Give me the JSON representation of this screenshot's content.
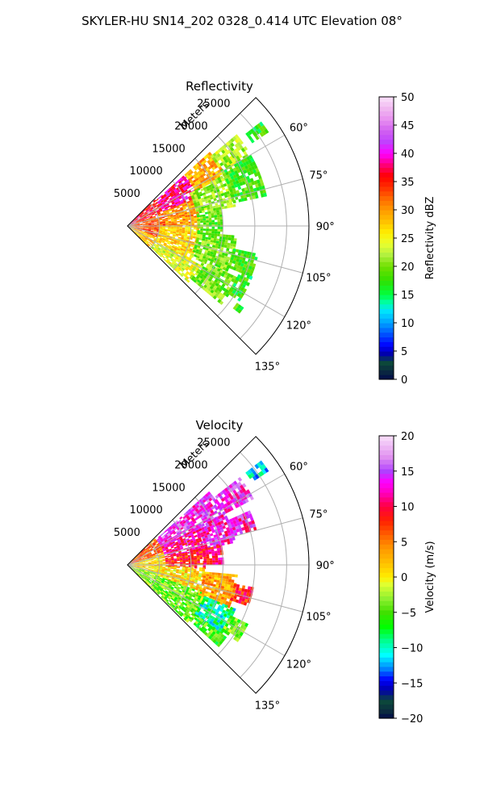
{
  "suptitle": "SKYLER-HU  SN14_202  0328_0.414 UTC Elevation 08°",
  "chart_data": [
    {
      "type": "heatmap",
      "subtype": "polar-sector-radar",
      "title": "Reflectivity",
      "radial_label": "Meters",
      "r_ticks": [
        5000,
        10000,
        15000,
        20000,
        25000
      ],
      "r_max_m": 28500,
      "theta_range_deg": [
        45,
        135
      ],
      "theta_ticks_deg": [
        60,
        75,
        90,
        105,
        120,
        135
      ],
      "theta_tick_labels": [
        "60°",
        "75°",
        "90°",
        "105°",
        "120°",
        "135°"
      ],
      "grid": true,
      "colorbar": {
        "label": "Reflectivity dBZ",
        "min": 0,
        "max": 50,
        "ticks": [
          0,
          5,
          10,
          15,
          20,
          25,
          30,
          35,
          40,
          45,
          50
        ],
        "tick_labels": [
          "0",
          "5",
          "10",
          "15",
          "20",
          "25",
          "30",
          "35",
          "40",
          "45",
          "50"
        ],
        "stops": [
          {
            "v": 0,
            "c": "#000a4a"
          },
          {
            "v": 1.5,
            "c": "#0b2a3f"
          },
          {
            "v": 3,
            "c": "#0c4a3a"
          },
          {
            "v": 4.5,
            "c": "#0000a8"
          },
          {
            "v": 6,
            "c": "#0000ff"
          },
          {
            "v": 8,
            "c": "#0050ff"
          },
          {
            "v": 10,
            "c": "#00a0ff"
          },
          {
            "v": 12,
            "c": "#00e0ff"
          },
          {
            "v": 13.5,
            "c": "#00ffb0"
          },
          {
            "v": 15,
            "c": "#00ff40"
          },
          {
            "v": 17.5,
            "c": "#30e000"
          },
          {
            "v": 20,
            "c": "#70e000"
          },
          {
            "v": 22,
            "c": "#b0f040"
          },
          {
            "v": 24,
            "c": "#e8ff30"
          },
          {
            "v": 26,
            "c": "#ffee00"
          },
          {
            "v": 28,
            "c": "#ffc000"
          },
          {
            "v": 30,
            "c": "#ff9a00"
          },
          {
            "v": 32,
            "c": "#ff6a00"
          },
          {
            "v": 34,
            "c": "#ff3000"
          },
          {
            "v": 36,
            "c": "#ff0000"
          },
          {
            "v": 38,
            "c": "#ff0078"
          },
          {
            "v": 40,
            "c": "#ff00ff"
          },
          {
            "v": 42,
            "c": "#c040ff"
          },
          {
            "v": 44,
            "c": "#d060f0"
          },
          {
            "v": 46,
            "c": "#e890f0"
          },
          {
            "v": 48,
            "c": "#f0b8f0"
          },
          {
            "v": 50,
            "c": "#fae0fa"
          }
        ]
      },
      "field_regions": [
        {
          "theta": [
            46,
            70
          ],
          "r": [
            0,
            6000
          ],
          "value": 36
        },
        {
          "theta": [
            70,
            110
          ],
          "r": [
            0,
            6000
          ],
          "value": 33
        },
        {
          "theta": [
            110,
            134
          ],
          "r": [
            0,
            5000
          ],
          "value": 28
        },
        {
          "theta": [
            48,
            68
          ],
          "r": [
            6000,
            12000
          ],
          "value": 38
        },
        {
          "theta": [
            68,
            90
          ],
          "r": [
            6000,
            11000
          ],
          "value": 30
        },
        {
          "theta": [
            90,
            118
          ],
          "r": [
            5000,
            11000
          ],
          "value": 27
        },
        {
          "theta": [
            118,
            133
          ],
          "r": [
            5000,
            13000
          ],
          "value": 24
        },
        {
          "theta": [
            48,
            62
          ],
          "r": [
            12000,
            17000
          ],
          "value": 29
        },
        {
          "theta": [
            62,
            80
          ],
          "r": [
            11000,
            17000
          ],
          "value": 21
        },
        {
          "theta": [
            80,
            95
          ],
          "r": [
            11000,
            15000
          ],
          "value": 19
        },
        {
          "theta": [
            95,
            115
          ],
          "r": [
            11000,
            17000
          ],
          "value": 20
        },
        {
          "theta": [
            115,
            130
          ],
          "r": [
            13000,
            19000
          ],
          "value": 20
        },
        {
          "theta": [
            50,
            60
          ],
          "r": [
            17000,
            22000
          ],
          "value": 22
        },
        {
          "theta": [
            60,
            78
          ],
          "r": [
            17000,
            22000
          ],
          "value": 18
        },
        {
          "theta": [
            102,
            112
          ],
          "r": [
            17000,
            21000
          ],
          "value": 18
        },
        {
          "theta": [
            112,
            124
          ],
          "r": [
            19000,
            21000
          ],
          "value": 17
        },
        {
          "theta": [
            52,
            56
          ],
          "r": [
            23500,
            26500
          ],
          "value": 17
        },
        {
          "theta": [
            125,
            128
          ],
          "r": [
            21000,
            22000
          ],
          "value": 18
        }
      ]
    },
    {
      "type": "heatmap",
      "subtype": "polar-sector-radar",
      "title": "Velocity",
      "radial_label": "Meters",
      "r_ticks": [
        5000,
        10000,
        15000,
        20000,
        25000
      ],
      "r_max_m": 28500,
      "theta_range_deg": [
        45,
        135
      ],
      "theta_ticks_deg": [
        60,
        75,
        90,
        105,
        120,
        135
      ],
      "theta_tick_labels": [
        "60°",
        "75°",
        "90°",
        "105°",
        "120°",
        "135°"
      ],
      "grid": true,
      "colorbar": {
        "label": "Velocity (m/s)",
        "min": -20,
        "max": 20,
        "ticks": [
          -20,
          -15,
          -10,
          -5,
          0,
          5,
          10,
          15,
          20
        ],
        "tick_labels": [
          "−20",
          "−15",
          "−10",
          "−5",
          "0",
          "5",
          "10",
          "15",
          "20"
        ],
        "stops": [
          {
            "v": -20,
            "c": "#000a4a"
          },
          {
            "v": -19,
            "c": "#0b2a3f"
          },
          {
            "v": -17.5,
            "c": "#0c4a3a"
          },
          {
            "v": -16,
            "c": "#0000a8"
          },
          {
            "v": -14.5,
            "c": "#0000ff"
          },
          {
            "v": -13,
            "c": "#0080ff"
          },
          {
            "v": -11,
            "c": "#00ffff"
          },
          {
            "v": -9,
            "c": "#00ff90"
          },
          {
            "v": -7,
            "c": "#00ff00"
          },
          {
            "v": -5,
            "c": "#40e000"
          },
          {
            "v": -3,
            "c": "#90f030"
          },
          {
            "v": -1,
            "c": "#e0ff30"
          },
          {
            "v": 0,
            "c": "#ffee00"
          },
          {
            "v": 2,
            "c": "#ffc000"
          },
          {
            "v": 4,
            "c": "#ff9a00"
          },
          {
            "v": 6,
            "c": "#ff6000"
          },
          {
            "v": 8,
            "c": "#ff2000"
          },
          {
            "v": 10,
            "c": "#ff0040"
          },
          {
            "v": 12,
            "c": "#ff00c0"
          },
          {
            "v": 13.5,
            "c": "#ff00ff"
          },
          {
            "v": 15,
            "c": "#b040ff"
          },
          {
            "v": 17,
            "c": "#e090f0"
          },
          {
            "v": 20,
            "c": "#fae0fa"
          }
        ]
      },
      "field_regions": [
        {
          "theta": [
            46,
            72
          ],
          "r": [
            0,
            6000
          ],
          "value": 6
        },
        {
          "theta": [
            72,
            105
          ],
          "r": [
            0,
            6000
          ],
          "value": 1
        },
        {
          "theta": [
            105,
            134
          ],
          "r": [
            0,
            5000
          ],
          "value": -3
        },
        {
          "theta": [
            48,
            62
          ],
          "r": [
            6000,
            17000
          ],
          "value": 14
        },
        {
          "theta": [
            62,
            78
          ],
          "r": [
            6000,
            12000
          ],
          "value": 11
        },
        {
          "theta": [
            78,
            92
          ],
          "r": [
            6000,
            12000
          ],
          "value": 8
        },
        {
          "theta": [
            92,
            110
          ],
          "r": [
            5000,
            12000
          ],
          "value": 1
        },
        {
          "theta": [
            110,
            133
          ],
          "r": [
            5000,
            13000
          ],
          "value": -4
        },
        {
          "theta": [
            62,
            78
          ],
          "r": [
            12000,
            17000
          ],
          "value": 13
        },
        {
          "theta": [
            78,
            90
          ],
          "r": [
            12000,
            15000
          ],
          "value": 10
        },
        {
          "theta": [
            95,
            112
          ],
          "r": [
            12000,
            17000
          ],
          "value": 3
        },
        {
          "theta": [
            112,
            126
          ],
          "r": [
            13000,
            18000
          ],
          "value": -9
        },
        {
          "theta": [
            126,
            131
          ],
          "r": [
            13000,
            19000
          ],
          "value": -5
        },
        {
          "theta": [
            52,
            62
          ],
          "r": [
            17000,
            22000
          ],
          "value": 14
        },
        {
          "theta": [
            66,
            74
          ],
          "r": [
            17000,
            21000
          ],
          "value": 13
        },
        {
          "theta": [
            100,
            108
          ],
          "r": [
            17000,
            20000
          ],
          "value": 8
        },
        {
          "theta": [
            52,
            56
          ],
          "r": [
            23500,
            26500
          ],
          "value": -11
        },
        {
          "theta": [
            116,
            124
          ],
          "r": [
            18000,
            21000
          ],
          "value": -4
        }
      ]
    }
  ]
}
